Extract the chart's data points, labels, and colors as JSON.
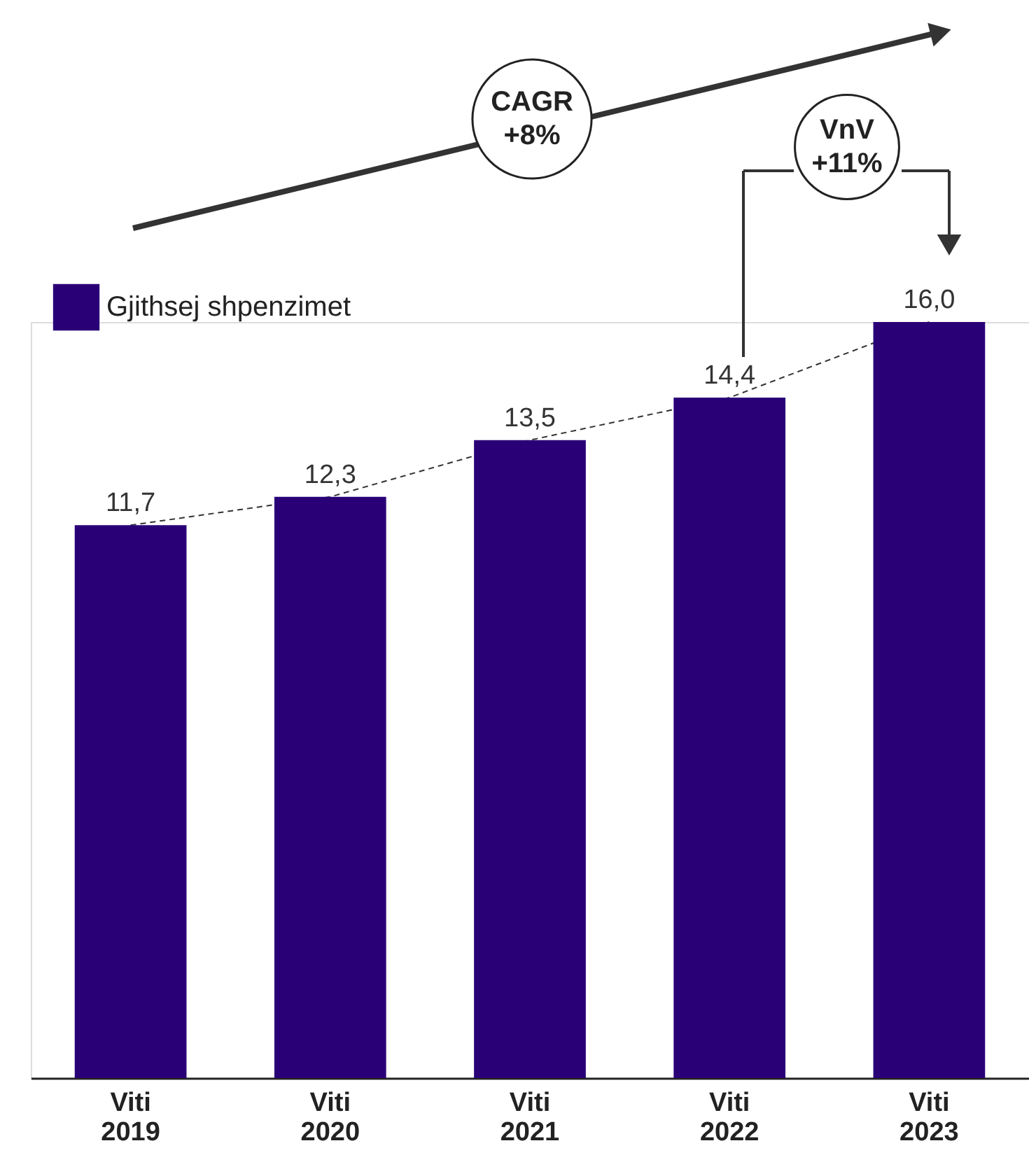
{
  "chart_data": {
    "type": "bar",
    "categories": [
      "Viti 2019",
      "Viti 2020",
      "Viti 2021",
      "Viti 2022",
      "Viti 2023"
    ],
    "series": [
      {
        "name": "Gjithsej shpenzimet",
        "color": "#2a0077",
        "values": [
          11.7,
          12.3,
          13.5,
          14.4,
          16.0
        ],
        "value_labels": [
          "11,7",
          "12,3",
          "13,5",
          "14,4",
          "16,0"
        ]
      },
      {
        "type": "line",
        "color": "#333333",
        "line_style": "dashed",
        "values": [
          11.7,
          12.3,
          13.5,
          14.4,
          16.0
        ]
      }
    ],
    "legend": "top left",
    "grid": false,
    "annotations": [
      "CAGR\n+8%",
      "VnV\n+11%"
    ]
  }
}
